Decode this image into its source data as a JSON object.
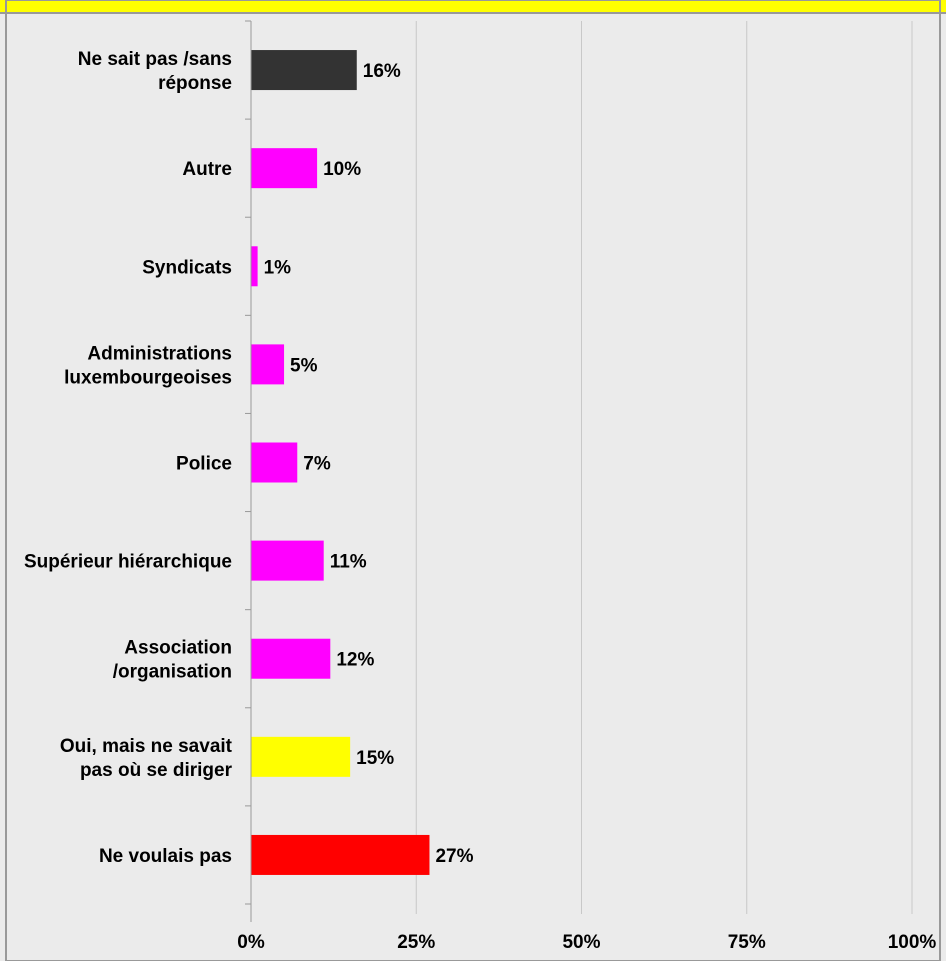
{
  "chart_data": {
    "type": "bar",
    "orientation": "horizontal",
    "title": "",
    "xlabel": "",
    "ylabel": "",
    "categories": [
      "Ne sait pas /sans réponse",
      "Autre",
      "Syndicats",
      "Administrations luxembourgeoises",
      "Police",
      "Supérieur hiérarchique",
      "Association /organisation",
      "Oui, mais ne savait pas où se diriger",
      "Ne voulais pas"
    ],
    "values": [
      16,
      10,
      1,
      5,
      7,
      11,
      12,
      15,
      27
    ],
    "value_labels": [
      "16%",
      "10%",
      "1%",
      "5%",
      "7%",
      "11%",
      "12%",
      "15%",
      "27%"
    ],
    "bar_colors": [
      "#333333",
      "#ff00ff",
      "#ff00ff",
      "#ff00ff",
      "#ff00ff",
      "#ff00ff",
      "#ff00ff",
      "#ffff00",
      "#ff0000"
    ],
    "xlim": [
      0,
      100
    ],
    "xticks": [
      0,
      25,
      50,
      75,
      100
    ],
    "xtick_labels": [
      "0%",
      "25%",
      "50%",
      "75%",
      "100%"
    ],
    "grid": "vertical",
    "legend": "none",
    "plot_background": "#ebebeb",
    "frame_color": "#999999",
    "header_band_color": "#ffff00"
  }
}
